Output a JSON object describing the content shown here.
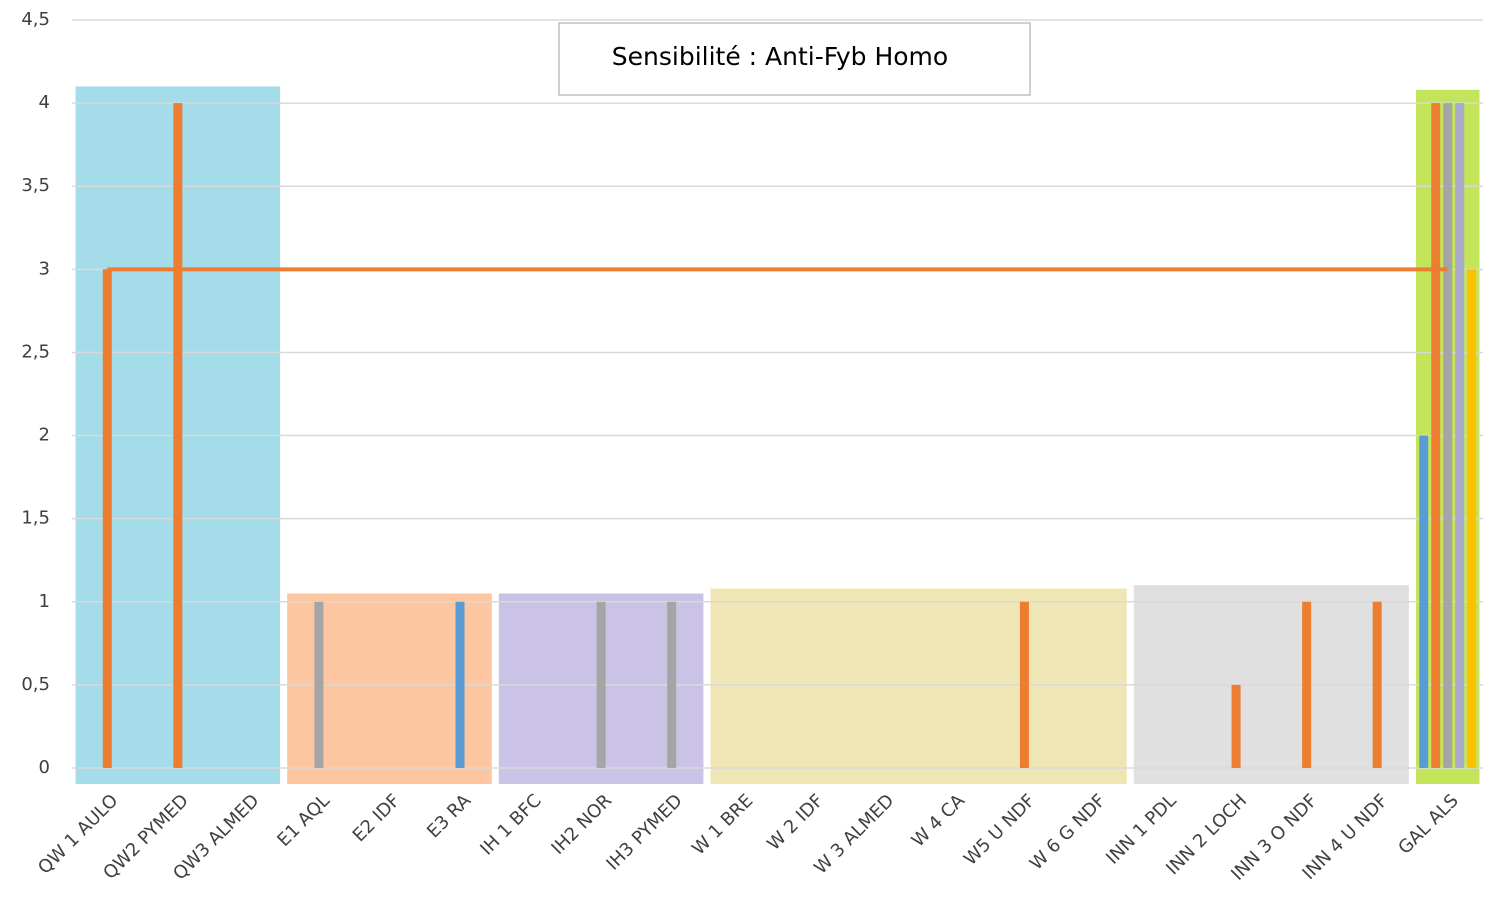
{
  "chart_data": {
    "type": "bar",
    "title": "Sensibilité : Anti-Fyb Homo",
    "categories": [
      "QW 1 AULO",
      "QW2 PYMED",
      "QW3 ALMED",
      "E1 AQL",
      "E2 IDF",
      "E3 RA",
      "IH 1 BFC",
      "IH2 NOR",
      "IH3 PYMED",
      "W 1 BRE",
      "W 2 IDF",
      "W 3 ALMED",
      "W 4 CA",
      "W5 U NDF",
      "W 6 G NDF",
      "INN 1 PDL",
      "INN 2 LOCH",
      "INN 3 O NDF",
      "INN 4 U NDF",
      "GAL ALS"
    ],
    "series": [
      {
        "color": "#5b9bd5",
        "values": [
          null,
          null,
          null,
          null,
          null,
          1,
          null,
          null,
          null,
          null,
          null,
          null,
          null,
          null,
          null,
          null,
          null,
          null,
          null,
          2
        ]
      },
      {
        "color": "#ed7d31",
        "values": [
          3,
          4,
          null,
          null,
          null,
          null,
          null,
          null,
          null,
          null,
          null,
          null,
          null,
          1,
          null,
          null,
          0.5,
          1,
          1,
          4
        ]
      },
      {
        "color": "#a5a5a5",
        "values": [
          null,
          null,
          null,
          1,
          null,
          null,
          null,
          1,
          1,
          null,
          null,
          null,
          null,
          null,
          null,
          null,
          null,
          null,
          null,
          4
        ]
      },
      {
        "color": "#a9a9c9",
        "values": [
          null,
          null,
          null,
          null,
          null,
          null,
          null,
          null,
          null,
          null,
          null,
          null,
          null,
          null,
          null,
          null,
          null,
          null,
          null,
          4
        ]
      },
      {
        "color": "#ffc000",
        "values": [
          null,
          null,
          null,
          null,
          null,
          null,
          null,
          null,
          null,
          null,
          null,
          null,
          null,
          null,
          null,
          null,
          null,
          null,
          null,
          3
        ]
      },
      {
        "type": "line",
        "color": "#ed7d31",
        "values": [
          3,
          3,
          3,
          3,
          3,
          3,
          3,
          3,
          3,
          3,
          3,
          3,
          3,
          3,
          3,
          3,
          3,
          3,
          3,
          3
        ]
      }
    ],
    "groups": [
      {
        "first": 0,
        "last": 2,
        "top": 4.1,
        "color": "#a5dcea"
      },
      {
        "first": 3,
        "last": 5,
        "top": 1.05,
        "color": "#fbc6a0"
      },
      {
        "first": 6,
        "last": 8,
        "top": 1.05,
        "color": "#cbc3e6"
      },
      {
        "first": 9,
        "last": 14,
        "top": 1.08,
        "color": "#f0e5b5"
      },
      {
        "first": 15,
        "last": 18,
        "top": 1.1,
        "color": "#e0e0e0"
      },
      {
        "first": 19,
        "last": 19,
        "top": 4.08,
        "color": "#c3e55a"
      }
    ],
    "ylim": [
      0,
      4.5
    ],
    "yticks": [
      0,
      {
        "value": 0.5,
        "label": "0,5"
      },
      1,
      {
        "value": 1.5,
        "label": "1,5"
      },
      2,
      {
        "value": 2.5,
        "label": "2,5"
      },
      3,
      {
        "value": 3.5,
        "label": "3,5"
      },
      4,
      {
        "value": 4.5,
        "label": "4,5"
      }
    ],
    "grid": true
  }
}
